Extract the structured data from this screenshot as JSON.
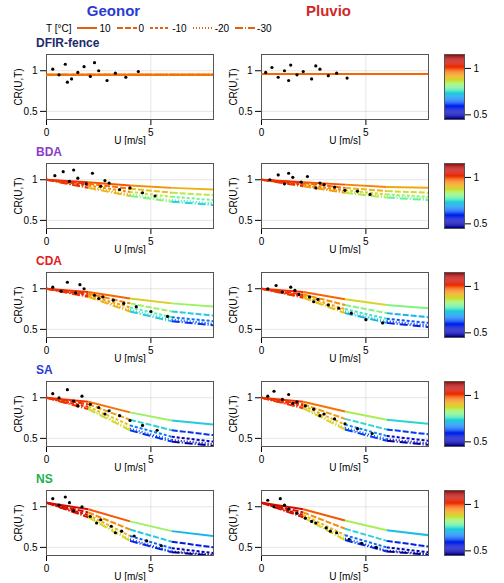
{
  "chart_data": {
    "type": "surface_grid",
    "columns": [
      {
        "name": "Geonor",
        "color": "#2b3bd0"
      },
      {
        "name": "Pluvio",
        "color": "#d02828"
      }
    ],
    "rows": [
      {
        "name": "DFIR-fence",
        "color": "#1c2a6b"
      },
      {
        "name": "BDA",
        "color": "#8a3cc8"
      },
      {
        "name": "CDA",
        "color": "#e02020"
      },
      {
        "name": "SA",
        "color": "#2a3cd8"
      },
      {
        "name": "NS",
        "color": "#20b050"
      }
    ],
    "xlabel": "U [m/s]",
    "ylabel": "CR(U,T)",
    "tlabel": "T [°C]",
    "xlim": [
      0,
      8
    ],
    "xticks": [
      0,
      5
    ],
    "ylim": [
      0.4,
      1.2
    ],
    "yticks": [
      0.5,
      1
    ],
    "tticks": [
      10,
      0,
      -10,
      -20,
      -30
    ],
    "surface_U": [
      0,
      2,
      4,
      6,
      8
    ],
    "colorbar": {
      "range": [
        0.45,
        1.15
      ],
      "ticks": [
        0.5,
        1
      ]
    },
    "panels": [
      [
        {
          "surface": [
            [
              0.95,
              0.95,
              0.95,
              0.95,
              0.95
            ],
            [
              0.95,
              0.95,
              0.95,
              0.95,
              0.95
            ],
            [
              0.95,
              0.95,
              0.95,
              0.95,
              0.95
            ],
            [
              0.95,
              0.95,
              0.95,
              0.95,
              0.95
            ],
            [
              0.95,
              0.95,
              0.95,
              0.95,
              0.95
            ]
          ],
          "points": {
            "U": [
              0.3,
              0.6,
              0.9,
              1.2,
              1.5,
              1.8,
              2.1,
              2.5,
              2.9,
              3.3,
              3.8,
              4.4,
              1.0,
              2.3
            ],
            "CR": [
              1.02,
              0.95,
              1.08,
              0.9,
              0.98,
              1.05,
              0.93,
              1.0,
              0.88,
              0.97,
              0.92,
              0.99,
              0.86,
              1.1
            ]
          }
        },
        {
          "surface": [
            [
              0.96,
              0.96,
              0.96,
              0.96,
              0.96
            ],
            [
              0.96,
              0.96,
              0.96,
              0.96,
              0.96
            ],
            [
              0.96,
              0.96,
              0.96,
              0.96,
              0.96
            ],
            [
              0.96,
              0.96,
              0.96,
              0.96,
              0.96
            ],
            [
              0.96,
              0.96,
              0.96,
              0.96,
              0.96
            ]
          ],
          "points": {
            "U": [
              0.2,
              0.5,
              0.8,
              1.1,
              1.4,
              1.7,
              2.0,
              2.4,
              2.8,
              3.2,
              3.6,
              4.1,
              1.3,
              2.6
            ],
            "CR": [
              0.98,
              1.04,
              0.92,
              1.0,
              1.07,
              0.95,
              0.99,
              0.9,
              1.02,
              0.94,
              0.97,
              0.91,
              0.88,
              1.06
            ]
          }
        }
      ],
      [
        {
          "surface": [
            [
              1.0,
              0.97,
              0.93,
              0.9,
              0.88
            ],
            [
              1.0,
              0.95,
              0.89,
              0.84,
              0.81
            ],
            [
              1.0,
              0.93,
              0.85,
              0.79,
              0.75
            ],
            [
              1.0,
              0.91,
              0.82,
              0.75,
              0.71
            ],
            [
              1.0,
              0.9,
              0.8,
              0.73,
              0.69
            ]
          ],
          "points": {
            "U": [
              0.4,
              0.8,
              1.1,
              1.5,
              1.9,
              2.2,
              2.6,
              3.0,
              3.5,
              4.0,
              4.6,
              5.2,
              1.3,
              2.8
            ],
            "CR": [
              1.05,
              1.1,
              0.98,
              1.02,
              0.95,
              1.08,
              0.92,
              0.96,
              0.88,
              0.9,
              0.84,
              0.8,
              1.12,
              0.99
            ]
          }
        },
        {
          "surface": [
            [
              1.0,
              0.97,
              0.94,
              0.91,
              0.9
            ],
            [
              1.0,
              0.96,
              0.9,
              0.86,
              0.84
            ],
            [
              1.0,
              0.94,
              0.87,
              0.82,
              0.79
            ],
            [
              1.0,
              0.93,
              0.85,
              0.8,
              0.77
            ],
            [
              1.0,
              0.92,
              0.84,
              0.78,
              0.75
            ]
          ],
          "points": {
            "U": [
              0.4,
              0.8,
              1.1,
              1.5,
              1.9,
              2.2,
              2.6,
              3.0,
              3.5,
              4.0,
              4.6,
              5.2,
              1.3,
              2.8
            ],
            "CR": [
              1.0,
              1.06,
              0.95,
              1.03,
              0.97,
              1.04,
              0.9,
              0.94,
              0.91,
              0.87,
              0.86,
              0.82,
              1.08,
              0.96
            ]
          }
        }
      ],
      [
        {
          "surface": [
            [
              1.0,
              0.96,
              0.88,
              0.82,
              0.78
            ],
            [
              1.0,
              0.94,
              0.82,
              0.72,
              0.67
            ],
            [
              1.0,
              0.92,
              0.77,
              0.65,
              0.6
            ],
            [
              1.0,
              0.91,
              0.74,
              0.62,
              0.57
            ],
            [
              1.0,
              0.9,
              0.72,
              0.6,
              0.55
            ]
          ],
          "points": {
            "U": [
              0.3,
              0.7,
              1.0,
              1.4,
              1.8,
              2.3,
              2.7,
              3.2,
              3.7,
              4.3,
              5.0,
              5.8,
              1.6,
              2.5
            ],
            "CR": [
              1.02,
              0.97,
              1.08,
              0.95,
              1.0,
              0.92,
              0.9,
              0.86,
              0.82,
              0.78,
              0.72,
              0.66,
              1.05,
              0.88
            ]
          }
        },
        {
          "surface": [
            [
              1.0,
              0.96,
              0.87,
              0.8,
              0.76
            ],
            [
              1.0,
              0.93,
              0.8,
              0.7,
              0.65
            ],
            [
              1.0,
              0.91,
              0.75,
              0.63,
              0.58
            ],
            [
              1.0,
              0.9,
              0.72,
              0.6,
              0.55
            ],
            [
              1.0,
              0.89,
              0.7,
              0.58,
              0.53
            ]
          ],
          "points": {
            "U": [
              0.3,
              0.7,
              1.0,
              1.4,
              1.8,
              2.3,
              2.7,
              3.2,
              3.7,
              4.3,
              5.0,
              5.8,
              1.6,
              2.5
            ],
            "CR": [
              1.0,
              1.04,
              0.96,
              1.02,
              0.93,
              0.9,
              0.87,
              0.8,
              0.76,
              0.7,
              0.62,
              0.58,
              0.98,
              0.84
            ]
          }
        }
      ],
      [
        {
          "surface": [
            [
              1.0,
              0.95,
              0.82,
              0.72,
              0.67
            ],
            [
              1.0,
              0.92,
              0.73,
              0.6,
              0.54
            ],
            [
              1.0,
              0.89,
              0.66,
              0.52,
              0.46
            ],
            [
              1.0,
              0.87,
              0.62,
              0.48,
              0.43
            ],
            [
              1.0,
              0.86,
              0.6,
              0.46,
              0.41
            ]
          ],
          "points": {
            "U": [
              0.3,
              0.6,
              1.0,
              1.3,
              1.7,
              2.1,
              2.5,
              3.0,
              3.5,
              4.0,
              4.6,
              5.3,
              1.5,
              2.8
            ],
            "CR": [
              1.05,
              1.0,
              1.1,
              0.96,
              1.02,
              0.92,
              0.88,
              0.84,
              0.78,
              0.72,
              0.66,
              0.6,
              0.9,
              0.8
            ]
          }
        },
        {
          "surface": [
            [
              1.0,
              0.95,
              0.83,
              0.73,
              0.68
            ],
            [
              1.0,
              0.92,
              0.74,
              0.61,
              0.55
            ],
            [
              1.0,
              0.9,
              0.67,
              0.53,
              0.47
            ],
            [
              1.0,
              0.88,
              0.63,
              0.49,
              0.44
            ],
            [
              1.0,
              0.87,
              0.61,
              0.47,
              0.42
            ]
          ],
          "points": {
            "U": [
              0.3,
              0.6,
              1.0,
              1.3,
              1.7,
              2.1,
              2.5,
              3.0,
              3.5,
              4.0,
              4.6,
              5.3,
              1.5,
              2.8
            ],
            "CR": [
              1.02,
              1.08,
              0.98,
              1.04,
              0.95,
              0.9,
              0.86,
              0.8,
              0.74,
              0.68,
              0.62,
              0.56,
              0.93,
              0.78
            ]
          }
        }
      ],
      [
        {
          "surface": [
            [
              1.05,
              0.97,
              0.82,
              0.7,
              0.64
            ],
            [
              1.05,
              0.93,
              0.72,
              0.57,
              0.5
            ],
            [
              1.05,
              0.9,
              0.64,
              0.49,
              0.43
            ],
            [
              1.05,
              0.88,
              0.6,
              0.45,
              0.41
            ],
            [
              1.05,
              0.87,
              0.58,
              0.44,
              0.4
            ]
          ],
          "points": {
            "U": [
              0.3,
              0.6,
              0.9,
              1.3,
              1.7,
              2.1,
              2.6,
              3.1,
              3.6,
              4.2,
              4.8,
              5.5,
              1.1,
              2.4,
              3.3
            ],
            "CR": [
              1.1,
              1.02,
              1.12,
              0.95,
              1.0,
              0.88,
              0.84,
              0.76,
              0.7,
              0.64,
              0.58,
              0.52,
              1.05,
              0.8,
              0.68
            ]
          }
        },
        {
          "surface": [
            [
              1.05,
              0.97,
              0.83,
              0.71,
              0.65
            ],
            [
              1.05,
              0.93,
              0.73,
              0.58,
              0.51
            ],
            [
              1.05,
              0.9,
              0.65,
              0.5,
              0.44
            ],
            [
              1.05,
              0.88,
              0.61,
              0.46,
              0.42
            ],
            [
              1.05,
              0.87,
              0.59,
              0.45,
              0.41
            ]
          ],
          "points": {
            "U": [
              0.3,
              0.6,
              0.9,
              1.3,
              1.7,
              2.1,
              2.6,
              3.1,
              3.6,
              4.2,
              4.8,
              5.5,
              1.1,
              2.4,
              3.3
            ],
            "CR": [
              1.08,
              1.0,
              1.1,
              0.97,
              0.92,
              0.86,
              0.8,
              0.74,
              0.68,
              0.6,
              0.55,
              0.5,
              1.02,
              0.82,
              0.7
            ]
          }
        }
      ]
    ]
  }
}
